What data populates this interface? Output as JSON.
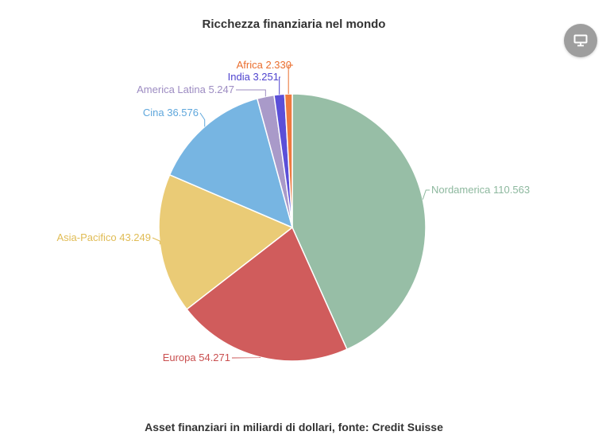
{
  "display_button": {
    "icon": "monitor-icon"
  },
  "chart_data": {
    "type": "pie",
    "title": "Ricchezza finanziaria nel mondo",
    "footer": "Asset finanziari in miliardi di dollari, fonte: Credit Suisse",
    "slices": [
      {
        "label": "Nordamerica 110.563",
        "value": 110.563,
        "color": "#97BEA6",
        "label_color": "#8DB89E"
      },
      {
        "label": "Europa 54.271",
        "value": 54.271,
        "color": "#D05C5C",
        "label_color": "#C94F4F"
      },
      {
        "label": "Asia-Pacifico 43.249",
        "value": 43.249,
        "color": "#EACB76",
        "label_color": "#E0BC55"
      },
      {
        "label": "Cina 36.576",
        "value": 36.576,
        "color": "#77B5E2",
        "label_color": "#5FA7DC"
      },
      {
        "label": "America Latina 5.247",
        "value": 5.247,
        "color": "#A99AC9",
        "label_color": "#9D8CC2"
      },
      {
        "label": "India 3.251",
        "value": 3.251,
        "color": "#5B4FD8",
        "label_color": "#4F43CF"
      },
      {
        "label": "Africa 2.330",
        "value": 2.33,
        "color": "#EE7A3F",
        "label_color": "#EA6E2E"
      }
    ]
  }
}
